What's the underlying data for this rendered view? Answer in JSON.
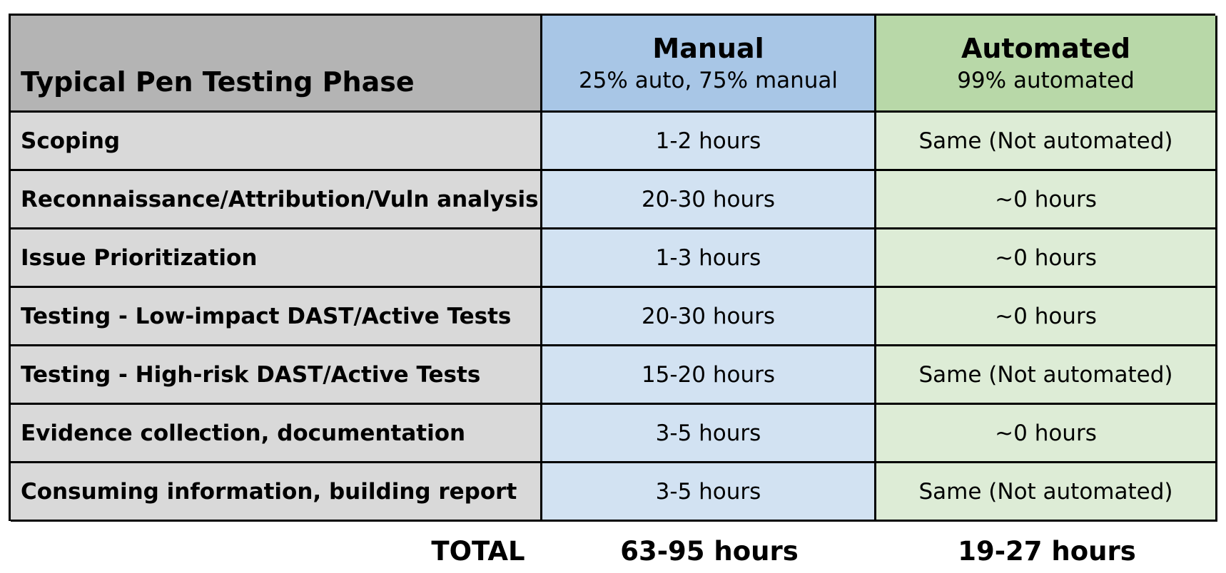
{
  "table": {
    "header": {
      "phase": "Typical Pen Testing Phase",
      "manual_title": "Manual",
      "manual_sub": "25% auto, 75% manual",
      "auto_title": "Automated",
      "auto_sub": "99% automated"
    },
    "rows": [
      {
        "phase": "Scoping",
        "manual": "1-2 hours",
        "automated": "Same (Not automated)"
      },
      {
        "phase": "Reconnaissance/Attribution/Vuln analysis",
        "manual": "20-30 hours",
        "automated": "~0 hours"
      },
      {
        "phase": "Issue Prioritization",
        "manual": "1-3 hours",
        "automated": "~0 hours"
      },
      {
        "phase": "Testing - Low-impact DAST/Active Tests",
        "manual": "20-30 hours",
        "automated": "~0 hours"
      },
      {
        "phase": "Testing - High-risk DAST/Active Tests",
        "manual": "15-20 hours",
        "automated": "Same (Not automated)"
      },
      {
        "phase": "Evidence collection, documentation",
        "manual": "3-5 hours",
        "automated": "~0 hours"
      },
      {
        "phase": "Consuming information, building report",
        "manual": "3-5 hours",
        "automated": "Same (Not automated)"
      }
    ],
    "total": {
      "label": "TOTAL",
      "manual": "63-95 hours",
      "automated": "19-27 hours"
    }
  },
  "colors": {
    "phase_header_bg": "#b4b4b4",
    "manual_header_bg": "#a8c6e6",
    "automated_header_bg": "#b8d8a8",
    "phase_cell_bg": "#d9d9d9",
    "manual_cell_bg": "#d2e2f2",
    "automated_cell_bg": "#ddecd6"
  }
}
